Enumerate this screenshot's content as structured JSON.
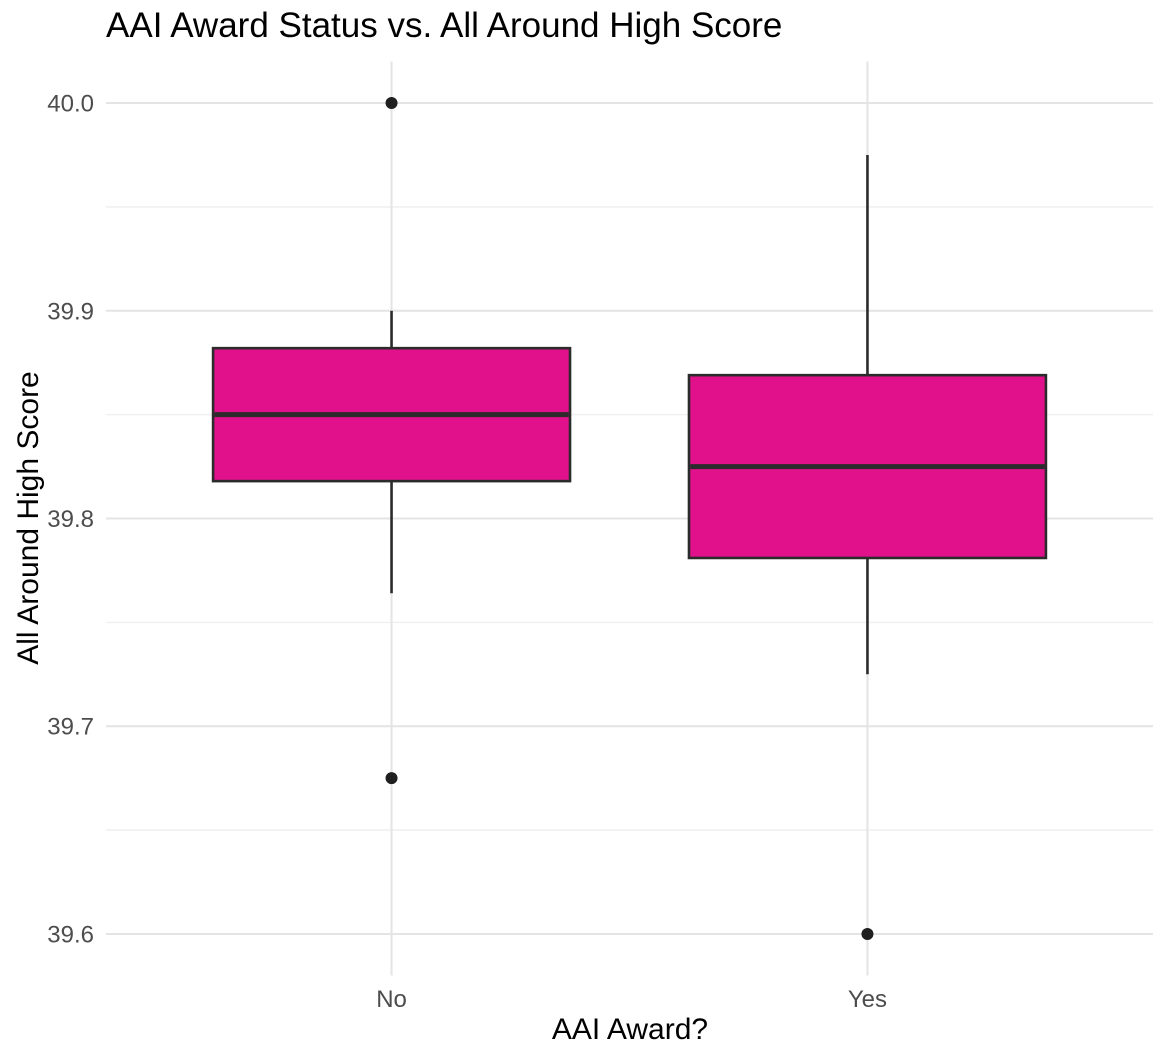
{
  "chart_data": {
    "type": "boxplot",
    "title": "AAI Award Status vs. All Around High Score",
    "xlabel": "AAI Award?",
    "ylabel": "All Around High Score",
    "categories": [
      "No",
      "Yes"
    ],
    "series": [
      {
        "category": "No",
        "whisker_low": 39.764,
        "q1": 39.818,
        "median": 39.85,
        "q3": 39.882,
        "whisker_high": 39.9,
        "outliers": [
          40.0,
          39.675
        ]
      },
      {
        "category": "Yes",
        "whisker_low": 39.725,
        "q1": 39.781,
        "median": 39.825,
        "q3": 39.869,
        "whisker_high": 39.975,
        "outliers": [
          39.6
        ]
      }
    ],
    "y_tick_labels": [
      "40.0",
      "39.9",
      "39.8",
      "39.7",
      "39.6"
    ],
    "y_tick_values": [
      40.0,
      39.9,
      39.8,
      39.7,
      39.6
    ],
    "y_minor_values": [
      39.95,
      39.85,
      39.75,
      39.65
    ],
    "ylim": [
      39.58,
      40.02
    ],
    "grid": true,
    "legend": "none",
    "colors": {
      "box_fill": "#E1118C",
      "box_stroke": "#2B2B2B",
      "median": "#2B2B2B",
      "whisker": "#2B2B2B",
      "outlier": "#1F1F1F",
      "grid_major": "#E4E4E4",
      "grid_minor": "#F0F0F0",
      "tick_label": "#4D4D4D",
      "axis_title": "#000000",
      "title": "#000000",
      "background": "#FFFFFF"
    }
  }
}
